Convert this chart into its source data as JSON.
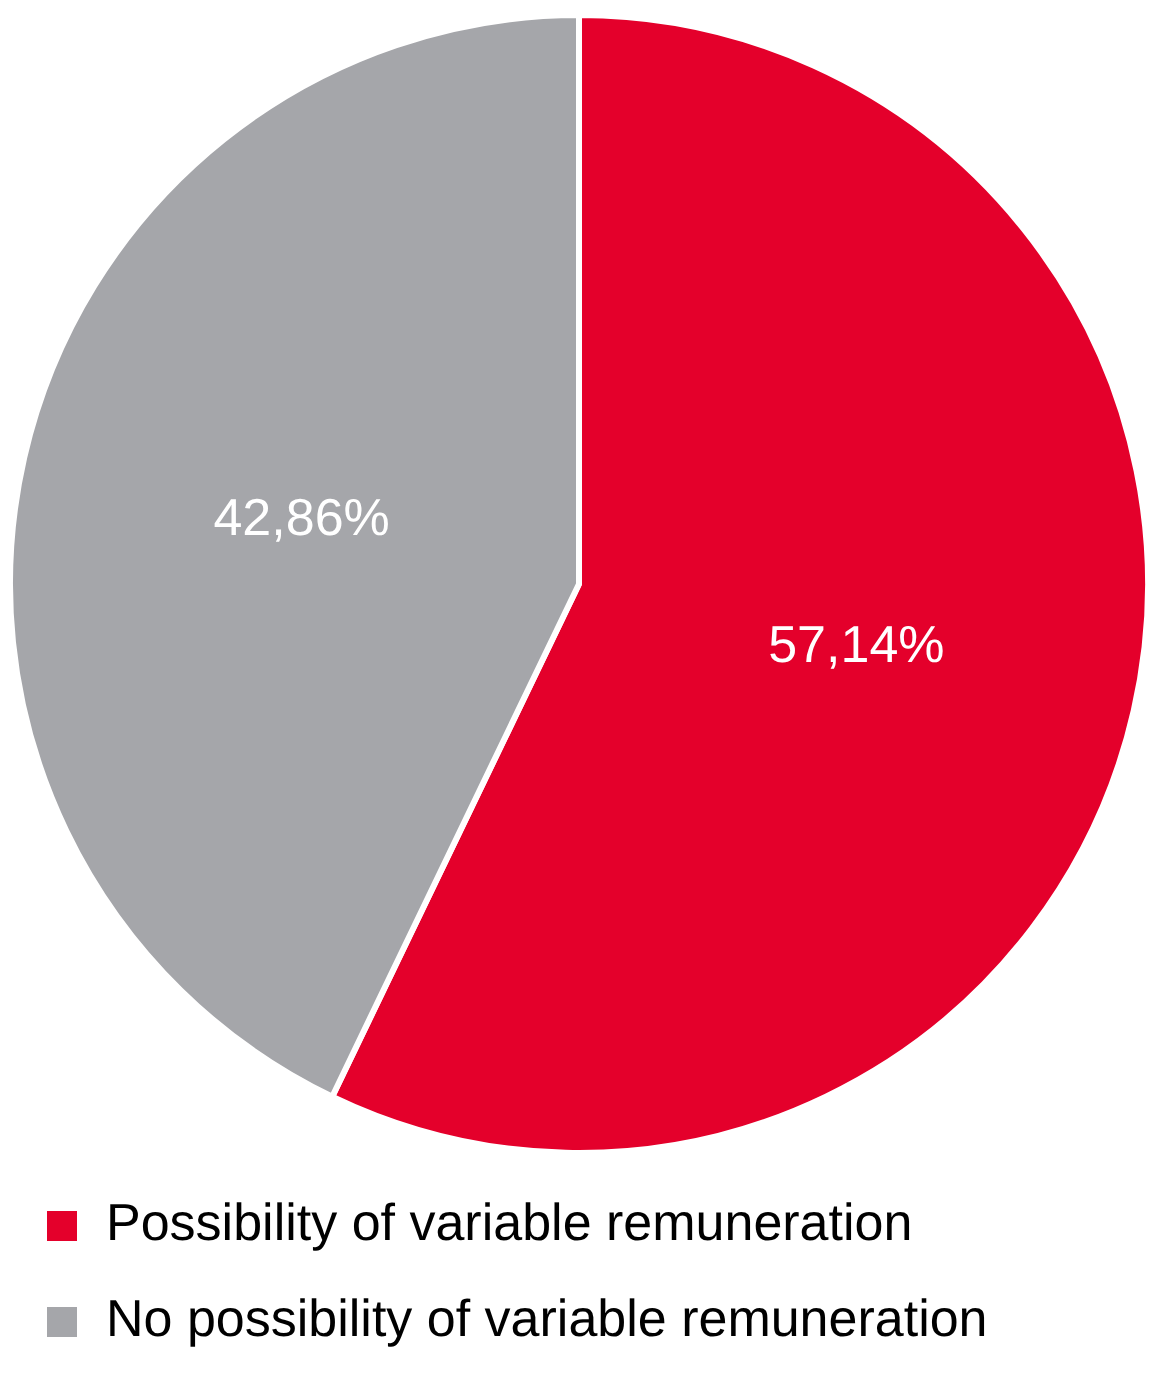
{
  "chart_data": {
    "type": "pie",
    "categories": [
      "Possibility of variable remuneration",
      "No possibility of variable remuneration"
    ],
    "values": [
      57.14,
      42.86
    ],
    "colors": [
      "#e4002b",
      "#a5a6aa"
    ],
    "value_labels": [
      "57,14%",
      "42,86%"
    ],
    "legend": "bottom"
  }
}
